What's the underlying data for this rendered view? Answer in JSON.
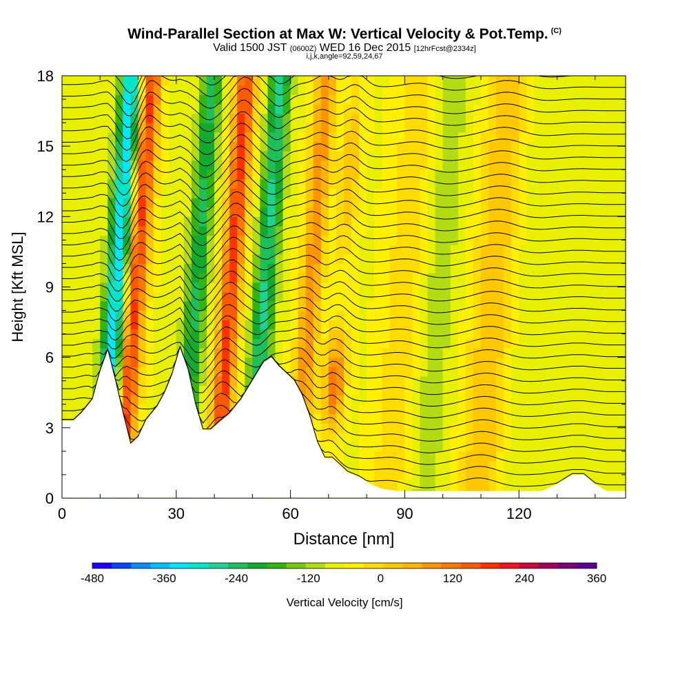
{
  "header": {
    "title": "Wind-Parallel Section at Max W: Vertical Velocity & Pot.Temp.",
    "copyright": "(C)",
    "valid_prefix": "Valid 1500 JST",
    "valid_utc": "(0600Z)",
    "valid_date": "WED 16 Dec 2015",
    "forecast": "[12hrFcst@2334z]",
    "grid_info": "i,j,k,angle=92,59,24,67"
  },
  "chart_data": {
    "type": "heatmap",
    "title": "Wind-Parallel Section at Max W: Vertical Velocity & Pot.Temp.",
    "xlabel": "Distance [nm]",
    "ylabel": "Height [Kft MSL]",
    "xlim": [
      0,
      148
    ],
    "ylim": [
      0,
      18
    ],
    "x_ticks": [
      "0",
      "30",
      "60",
      "90",
      "120"
    ],
    "x_tick_values": [
      0,
      30,
      60,
      90,
      120
    ],
    "y_ticks": [
      "0",
      "3",
      "6",
      "9",
      "12",
      "15",
      "18"
    ],
    "y_tick_values": [
      0,
      3,
      6,
      9,
      12,
      15,
      18
    ],
    "colorbar": {
      "label": "Vertical Velocity [cm/s]",
      "range": [
        -480,
        360
      ],
      "step": 40,
      "tick_labels": [
        "-480",
        "-360",
        "-240",
        "-120",
        "0",
        "120",
        "240",
        "360"
      ],
      "tick_values": [
        -480,
        -360,
        -240,
        -120,
        0,
        120,
        240,
        360
      ],
      "colors": [
        "#1e00ff",
        "#0a46ff",
        "#0a8cff",
        "#00beff",
        "#00e6ff",
        "#00e6c8",
        "#1ed296",
        "#1ebe5a",
        "#14aa32",
        "#32b414",
        "#78c814",
        "#b4dc14",
        "#e6f000",
        "#fff000",
        "#ffdc00",
        "#ffc800",
        "#ffb400",
        "#ff9600",
        "#ff7800",
        "#ff5a00",
        "#ff3200",
        "#f0141e",
        "#c80a3c",
        "#a0005a",
        "#780078",
        "#5a0096"
      ]
    },
    "velocity_features": [
      {
        "kind": "updraft",
        "x": 18,
        "peak_cms": 300
      },
      {
        "kind": "downdraft",
        "x": 13,
        "peak_cms": -360
      },
      {
        "kind": "downdraft",
        "x": 34,
        "peak_cms": -200
      },
      {
        "kind": "updraft",
        "x": 43,
        "peak_cms": 300
      },
      {
        "kind": "downdraft",
        "x": 52,
        "peak_cms": -240
      },
      {
        "kind": "updraft",
        "x": 64,
        "peak_cms": 200
      },
      {
        "kind": "updraft",
        "x": 72,
        "peak_cms": 240
      },
      {
        "kind": "updraft",
        "x": 89,
        "peak_cms": 80
      },
      {
        "kind": "downdraft",
        "x": 97,
        "peak_cms": -60
      },
      {
        "kind": "updraft",
        "x": 112,
        "peak_cms": 120
      },
      {
        "kind": "downdraft",
        "x": 122,
        "peak_cms": -30
      }
    ],
    "terrain_kft": [
      [
        0,
        3.3
      ],
      [
        3,
        3.3
      ],
      [
        5,
        3.6
      ],
      [
        8,
        4.2
      ],
      [
        10,
        5.4
      ],
      [
        12,
        6.3
      ],
      [
        14,
        5.0
      ],
      [
        16,
        3.6
      ],
      [
        18,
        2.3
      ],
      [
        20,
        2.6
      ],
      [
        22,
        3.3
      ],
      [
        25,
        3.9
      ],
      [
        27,
        4.5
      ],
      [
        29,
        5.3
      ],
      [
        31,
        6.4
      ],
      [
        33,
        5.5
      ],
      [
        35,
        4.0
      ],
      [
        37,
        2.9
      ],
      [
        39,
        2.9
      ],
      [
        41,
        3.2
      ],
      [
        44,
        3.6
      ],
      [
        47,
        4.2
      ],
      [
        50,
        5.0
      ],
      [
        53,
        5.8
      ],
      [
        55,
        6.0
      ],
      [
        57,
        5.6
      ],
      [
        59,
        5.3
      ],
      [
        61,
        5.0
      ],
      [
        63,
        4.4
      ],
      [
        65,
        3.5
      ],
      [
        67,
        2.4
      ],
      [
        69,
        1.7
      ],
      [
        71,
        1.7
      ],
      [
        73,
        1.4
      ],
      [
        75,
        1.1
      ],
      [
        78,
        0.9
      ],
      [
        81,
        0.6
      ],
      [
        84,
        0.4
      ],
      [
        88,
        0.3
      ],
      [
        92,
        0.3
      ],
      [
        100,
        0.3
      ],
      [
        110,
        0.3
      ],
      [
        118,
        0.3
      ],
      [
        126,
        0.3
      ],
      [
        130,
        0.6
      ],
      [
        134,
        1.0
      ],
      [
        137,
        1.0
      ],
      [
        140,
        0.6
      ],
      [
        143,
        0.3
      ],
      [
        148,
        0.3
      ]
    ],
    "isentropes_count": 36
  }
}
